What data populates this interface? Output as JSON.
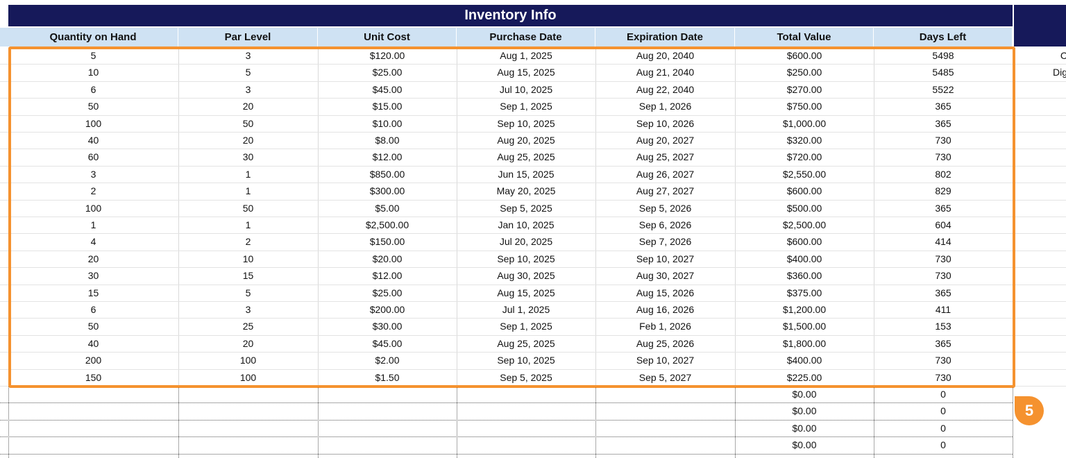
{
  "header": {
    "title": "Inventory Info"
  },
  "columns": [
    "Quantity on Hand",
    "Par Level",
    "Unit Cost",
    "Purchase Date",
    "Expiration Date",
    "Total Value",
    "Days Left"
  ],
  "rows": [
    [
      "5",
      "3",
      "$120.00",
      "Aug 1, 2025",
      "Aug 20, 2040",
      "$600.00",
      "5498"
    ],
    [
      "10",
      "5",
      "$25.00",
      "Aug 15, 2025",
      "Aug 21, 2040",
      "$250.00",
      "5485"
    ],
    [
      "6",
      "3",
      "$45.00",
      "Jul 10, 2025",
      "Aug 22, 2040",
      "$270.00",
      "5522"
    ],
    [
      "50",
      "20",
      "$15.00",
      "Sep 1, 2025",
      "Sep 1, 2026",
      "$750.00",
      "365"
    ],
    [
      "100",
      "50",
      "$10.00",
      "Sep 10, 2025",
      "Sep 10, 2026",
      "$1,000.00",
      "365"
    ],
    [
      "40",
      "20",
      "$8.00",
      "Aug 20, 2025",
      "Aug 20, 2027",
      "$320.00",
      "730"
    ],
    [
      "60",
      "30",
      "$12.00",
      "Aug 25, 2025",
      "Aug 25, 2027",
      "$720.00",
      "730"
    ],
    [
      "3",
      "1",
      "$850.00",
      "Jun 15, 2025",
      "Aug 26, 2027",
      "$2,550.00",
      "802"
    ],
    [
      "2",
      "1",
      "$300.00",
      "May 20, 2025",
      "Aug 27, 2027",
      "$600.00",
      "829"
    ],
    [
      "100",
      "50",
      "$5.00",
      "Sep 5, 2025",
      "Sep 5, 2026",
      "$500.00",
      "365"
    ],
    [
      "1",
      "1",
      "$2,500.00",
      "Jan 10, 2025",
      "Sep 6, 2026",
      "$2,500.00",
      "604"
    ],
    [
      "4",
      "2",
      "$150.00",
      "Jul 20, 2025",
      "Sep 7, 2026",
      "$600.00",
      "414"
    ],
    [
      "20",
      "10",
      "$20.00",
      "Sep 10, 2025",
      "Sep 10, 2027",
      "$400.00",
      "730"
    ],
    [
      "30",
      "15",
      "$12.00",
      "Aug 30, 2025",
      "Aug 30, 2027",
      "$360.00",
      "730"
    ],
    [
      "15",
      "5",
      "$25.00",
      "Aug 15, 2025",
      "Aug 15, 2026",
      "$375.00",
      "365"
    ],
    [
      "6",
      "3",
      "$200.00",
      "Jul 1, 2025",
      "Aug 16, 2026",
      "$1,200.00",
      "411"
    ],
    [
      "50",
      "25",
      "$30.00",
      "Sep 1, 2025",
      "Feb 1, 2026",
      "$1,500.00",
      "153"
    ],
    [
      "40",
      "20",
      "$45.00",
      "Aug 25, 2025",
      "Aug 25, 2026",
      "$1,800.00",
      "365"
    ],
    [
      "200",
      "100",
      "$2.00",
      "Sep 10, 2025",
      "Sep 10, 2027",
      "$400.00",
      "730"
    ],
    [
      "150",
      "100",
      "$1.50",
      "Sep 5, 2025",
      "Sep 5, 2027",
      "$225.00",
      "730"
    ]
  ],
  "empty_rows": [
    [
      "$0.00",
      "0"
    ],
    [
      "$0.00",
      "0"
    ],
    [
      "$0.00",
      "0"
    ],
    [
      "$0.00",
      "0"
    ]
  ],
  "side_cells": [
    "C",
    "Dig"
  ],
  "annotation": {
    "badge": "5"
  }
}
